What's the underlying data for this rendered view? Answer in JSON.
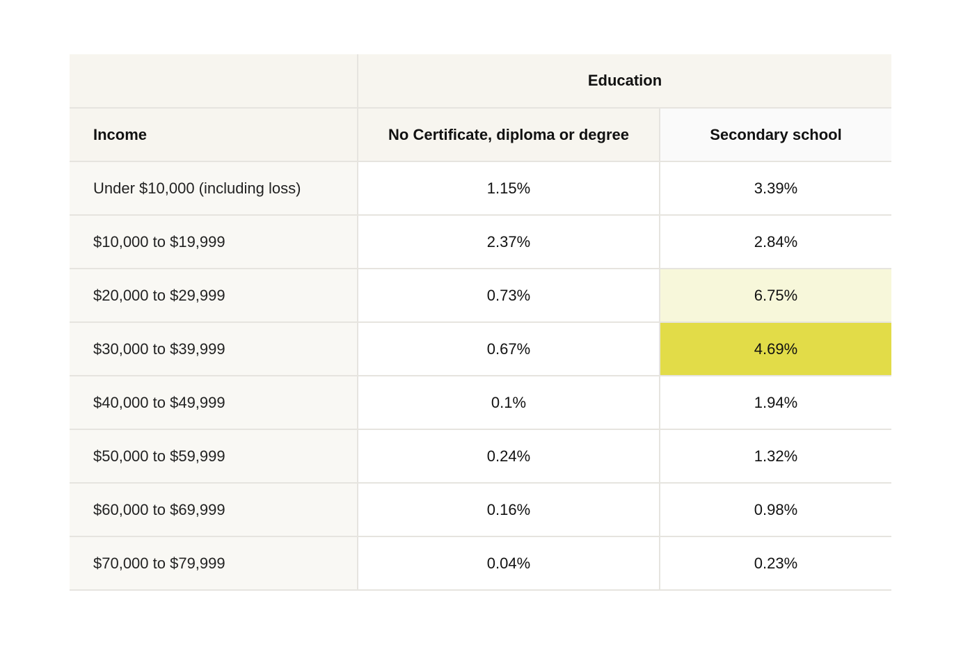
{
  "chart_data": {
    "type": "table",
    "group_header": "Education",
    "columns": [
      "Income",
      "No Certificate, diploma or degree",
      "Secondary school"
    ],
    "rows": [
      {
        "income": "Under $10,000 (including loss)",
        "no_certificate": "1.15%",
        "secondary": "3.39%"
      },
      {
        "income": "$10,000 to $19,999",
        "no_certificate": "2.37%",
        "secondary": "2.84%"
      },
      {
        "income": "$20,000 to $29,999",
        "no_certificate": "0.73%",
        "secondary": "6.75%"
      },
      {
        "income": "$30,000 to $39,999",
        "no_certificate": "0.67%",
        "secondary": "4.69%"
      },
      {
        "income": "$40,000 to $49,999",
        "no_certificate": "0.1%",
        "secondary": "1.94%"
      },
      {
        "income": "$50,000 to $59,999",
        "no_certificate": "0.24%",
        "secondary": "1.32%"
      },
      {
        "income": "$60,000 to $69,999",
        "no_certificate": "0.16%",
        "secondary": "0.98%"
      },
      {
        "income": "$70,000 to $79,999",
        "no_certificate": "0.04%",
        "secondary": "0.23%"
      }
    ],
    "highlights": [
      {
        "row": 2,
        "column": "secondary",
        "color": "#f7f7da"
      },
      {
        "row": 3,
        "column": "secondary",
        "color": "#e2dc48"
      }
    ]
  }
}
